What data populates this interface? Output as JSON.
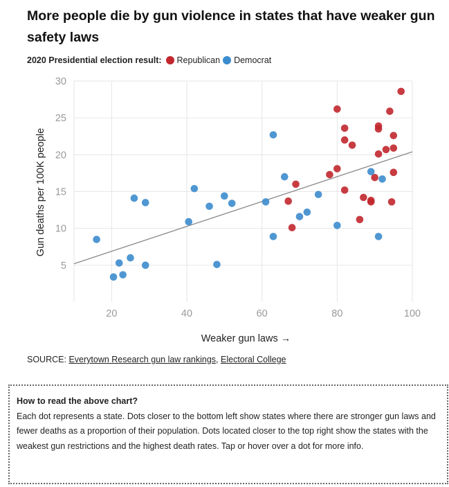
{
  "title": "More people die by gun violence in states that have weaker gun safety laws",
  "legend": {
    "label": "2020 Presidential election result:",
    "items": [
      {
        "name": "Republican",
        "color": "#c1272d"
      },
      {
        "name": "Democrat",
        "color": "#3c8ccd"
      }
    ]
  },
  "chart_data": {
    "type": "scatter",
    "xlabel": "Weaker gun laws →",
    "ylabel": "Gun deaths per 100K people",
    "xlim": [
      10,
      100
    ],
    "ylim": [
      0,
      30
    ],
    "xticks": [
      20,
      40,
      60,
      80,
      100
    ],
    "yticks": [
      5,
      10,
      15,
      20,
      25,
      30
    ],
    "grid": true,
    "trendline": {
      "x": [
        10,
        100
      ],
      "y": [
        5.2,
        20.4
      ],
      "color": "#888888"
    },
    "series": [
      {
        "name": "Republican",
        "color": "#c1272d",
        "points": [
          [
            97,
            28.6
          ],
          [
            80,
            26.2
          ],
          [
            94,
            25.9
          ],
          [
            82,
            23.6
          ],
          [
            91,
            23.9
          ],
          [
            91,
            23.5
          ],
          [
            95,
            22.6
          ],
          [
            82,
            22.0
          ],
          [
            84,
            21.3
          ],
          [
            93,
            20.7
          ],
          [
            95,
            20.9
          ],
          [
            91,
            20.1
          ],
          [
            80,
            18.1
          ],
          [
            78,
            17.3
          ],
          [
            95,
            17.6
          ],
          [
            90,
            16.9
          ],
          [
            69,
            16.0
          ],
          [
            82,
            15.2
          ],
          [
            87,
            14.2
          ],
          [
            89,
            13.8
          ],
          [
            89,
            13.6
          ],
          [
            94.5,
            13.6
          ],
          [
            67,
            13.7
          ],
          [
            86,
            11.2
          ],
          [
            68,
            10.1
          ]
        ]
      },
      {
        "name": "Democrat",
        "color": "#3c8ccd",
        "points": [
          [
            63,
            22.7
          ],
          [
            89,
            17.7
          ],
          [
            66,
            17.0
          ],
          [
            92,
            16.7
          ],
          [
            42,
            15.4
          ],
          [
            26,
            14.1
          ],
          [
            75,
            14.6
          ],
          [
            50,
            14.4
          ],
          [
            29,
            13.5
          ],
          [
            52,
            13.4
          ],
          [
            61,
            13.6
          ],
          [
            46,
            13.0
          ],
          [
            72,
            12.2
          ],
          [
            70,
            11.6
          ],
          [
            40.5,
            10.9
          ],
          [
            80,
            10.4
          ],
          [
            63,
            8.9
          ],
          [
            91,
            8.9
          ],
          [
            16,
            8.5
          ],
          [
            25,
            6.0
          ],
          [
            22,
            5.3
          ],
          [
            48,
            5.1
          ],
          [
            29,
            5.0
          ],
          [
            23,
            3.7
          ],
          [
            20.5,
            3.4
          ]
        ]
      }
    ]
  },
  "source": {
    "prefix": "SOURCE: ",
    "link1": "Everytown Research gun law rankings",
    "sep": ", ",
    "link2": "Electoral College"
  },
  "howto": {
    "heading": "How to read the above chart?",
    "body": "Each dot represents a state. Dots closer to the bottom left show states where there are stronger gun laws and fewer deaths as a proportion of their population. Dots located closer to the top right show the states with the weakest gun restrictions and the highest death rates. Tap or hover over a dot for more info."
  }
}
